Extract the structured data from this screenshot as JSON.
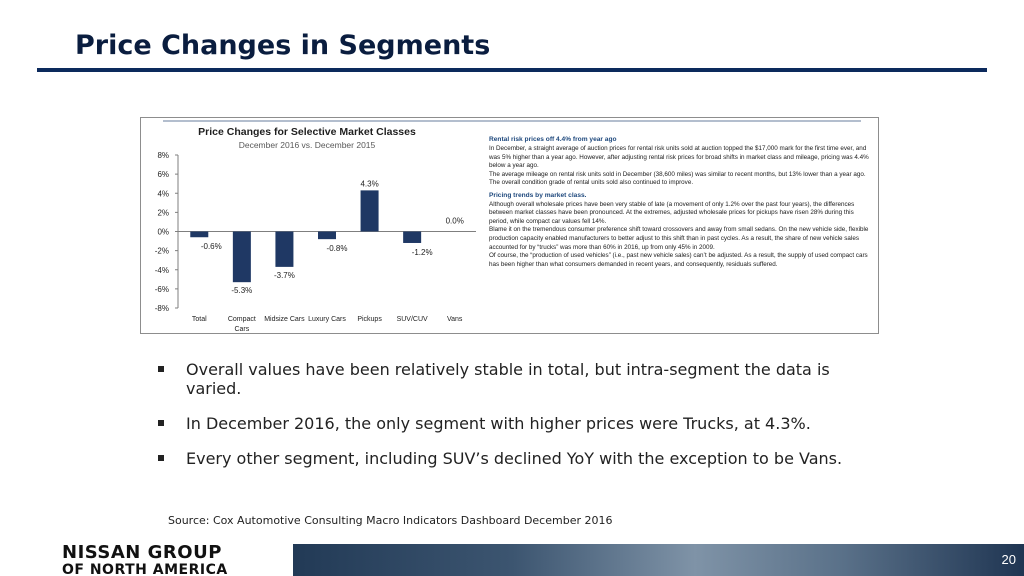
{
  "slide": {
    "title": "Price Changes in Segments",
    "bullets": [
      "Overall values have been relatively stable in total, but intra-segment the data is varied.",
      "In December 2016, the only segment with higher prices were Trucks, at 4.3%.",
      "Every other segment, including SUV’s declined YoY with the exception to be Vans."
    ],
    "source": "Source:  Cox Automotive Consulting Macro Indicators Dashboard December 2016",
    "page_number": "20",
    "logo": {
      "line1": "NISSAN GROUP",
      "line2": "OF NORTH AMERICA"
    }
  },
  "chart_data": {
    "type": "bar",
    "title": "Price Changes for Selective Market Classes",
    "subtitle": "December 2016 vs. December 2015",
    "categories": [
      "Total",
      "Compact Cars",
      "Midsize Cars",
      "Luxury Cars",
      "Pickups",
      "SUV/CUV",
      "Vans"
    ],
    "category_lines": [
      [
        "Total"
      ],
      [
        "Compact",
        "Cars"
      ],
      [
        "Midsize Cars"
      ],
      [
        "Luxury Cars"
      ],
      [
        "Pickups"
      ],
      [
        "SUV/CUV"
      ],
      [
        "Vans"
      ]
    ],
    "values": [
      -0.6,
      -5.3,
      -3.7,
      -0.8,
      4.3,
      -1.2,
      0.0
    ],
    "data_labels": [
      "-0.6%",
      "-5.3%",
      "-3.7%",
      "-0.8%",
      "4.3%",
      "-1.2%",
      "0.0%"
    ],
    "ylim": [
      -8,
      8
    ],
    "yticks": [
      8,
      6,
      4,
      2,
      0,
      -2,
      -4,
      -6,
      -8
    ],
    "ytick_labels": [
      "8%",
      "6%",
      "4%",
      "2%",
      "0%",
      "-2%",
      "-4%",
      "-6%",
      "-8%"
    ],
    "xlabel": "",
    "ylabel": "",
    "bar_color": "#1f3864",
    "grid": false,
    "legend": "none"
  },
  "side_text": {
    "heading1": "Rental risk prices off 4.4% from year ago",
    "para1": "In December, a straight average of auction prices for rental risk units sold at auction topped the $17,000 mark for the first time ever, and was 5% higher than a year ago.  However, after adjusting rental risk prices for broad shifts in market class and mileage, pricing was 4.4% below a year ago.",
    "para2": "The average mileage on rental risk units sold in December (38,600 miles) was similar to recent months, but 13% lower than a year ago.  The overall condition grade of rental units sold also continued to improve.",
    "heading2": "Pricing trends by market class.",
    "para3": "Although overall wholesale prices have been very stable of late (a movement of only 1.2% over the past four years), the differences between market classes have been pronounced.  At the extremes, adjusted wholesale prices for pickups have risen 28% during this period, while compact car values fell 14%.",
    "para4": "Blame it on the tremendous consumer preference shift toward crossovers and away from small sedans.  On the new vehicle side, flexible production capacity enabled manufacturers to better adjust to this shift than in past cycles.  As a result, the share of new vehicle sales accounted for by “trucks” was more than 60% in 2016, up from only 45% in 2009.",
    "para5": "Of course, the “production of used vehicles” (i.e., past new vehicle sales) can’t be adjusted.  As a result, the supply of used compact cars has been higher than what consumers demanded in recent years, and consequently, residuals suffered."
  }
}
